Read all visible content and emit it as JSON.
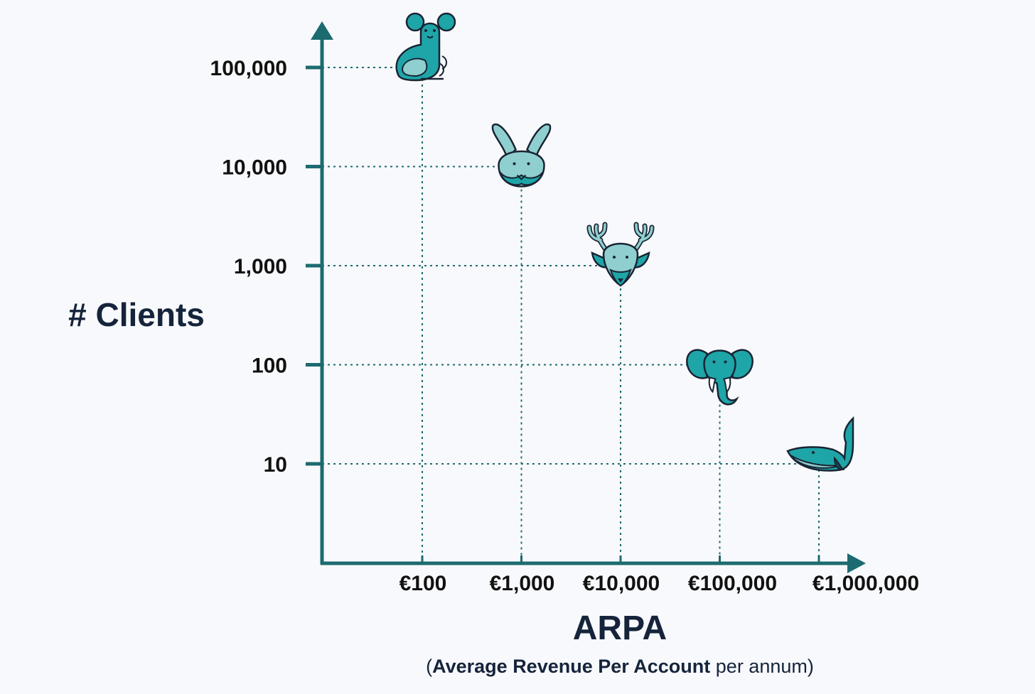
{
  "chart_data": {
    "type": "scatter",
    "xscale": "log",
    "yscale": "log",
    "ylabel": "# Clients",
    "xlabel": "ARPA",
    "xlabel_sub": {
      "open": "(",
      "bold": "Average Revenue Per Account",
      "normal": " per annum",
      "close": ")"
    },
    "grid": "dotted guide lines from each point to both axes",
    "x_ticks": [
      {
        "value": 100,
        "label": "€100"
      },
      {
        "value": 1000,
        "label": "€1,000"
      },
      {
        "value": 10000,
        "label": "€10,000"
      },
      {
        "value": 100000,
        "label": "€100,000"
      },
      {
        "value": 1000000,
        "label": "€1,000,000"
      }
    ],
    "y_ticks": [
      {
        "value": 10,
        "label": "10"
      },
      {
        "value": 100,
        "label": "100"
      },
      {
        "value": 1000,
        "label": "1,000"
      },
      {
        "value": 10000,
        "label": "10,000"
      },
      {
        "value": 100000,
        "label": "100,000"
      }
    ],
    "points": [
      {
        "x": 100,
        "y": 100000,
        "icon": "mouse-icon"
      },
      {
        "x": 1000,
        "y": 10000,
        "icon": "rabbit-icon"
      },
      {
        "x": 10000,
        "y": 1000,
        "icon": "deer-icon"
      },
      {
        "x": 100000,
        "y": 100,
        "icon": "elephant-icon"
      },
      {
        "x": 1000000,
        "y": 10,
        "icon": "whale-icon"
      }
    ]
  },
  "colors": {
    "axis": "#1c6b70",
    "guide": "#1c6b70",
    "icon_fill": "#1ea5a8",
    "icon_light": "#8fcfd0",
    "outline": "#1a2433",
    "background": "#f8f9fc"
  }
}
